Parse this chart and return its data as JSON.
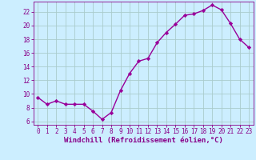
{
  "x": [
    0,
    1,
    2,
    3,
    4,
    5,
    6,
    7,
    8,
    9,
    10,
    11,
    12,
    13,
    14,
    15,
    16,
    17,
    18,
    19,
    20,
    21,
    22,
    23
  ],
  "y": [
    9.5,
    8.5,
    9.0,
    8.5,
    8.5,
    8.5,
    7.5,
    6.3,
    7.3,
    10.5,
    13.0,
    14.8,
    15.2,
    17.5,
    19.0,
    20.2,
    21.5,
    21.7,
    22.2,
    23.0,
    22.3,
    20.3,
    18.0,
    16.8
  ],
  "line_color": "#990099",
  "marker": "D",
  "markersize": 2.2,
  "linewidth": 1.0,
  "bg_color": "#cceeff",
  "grid_color": "#aacccc",
  "xlabel": "Windchill (Refroidissement éolien,°C)",
  "xlabel_fontsize": 6.5,
  "ylabel_ticks": [
    6,
    8,
    10,
    12,
    14,
    16,
    18,
    20,
    22
  ],
  "ylim": [
    5.5,
    23.5
  ],
  "xlim": [
    -0.5,
    23.5
  ],
  "xtick_labels": [
    "0",
    "1",
    "2",
    "3",
    "4",
    "5",
    "6",
    "7",
    "8",
    "9",
    "10",
    "11",
    "12",
    "13",
    "14",
    "15",
    "16",
    "17",
    "18",
    "19",
    "20",
    "21",
    "22",
    "23"
  ],
  "tick_color": "#880088",
  "tick_fontsize": 5.5,
  "spine_color": "#880088",
  "fig_width": 3.2,
  "fig_height": 2.0,
  "dpi": 100
}
